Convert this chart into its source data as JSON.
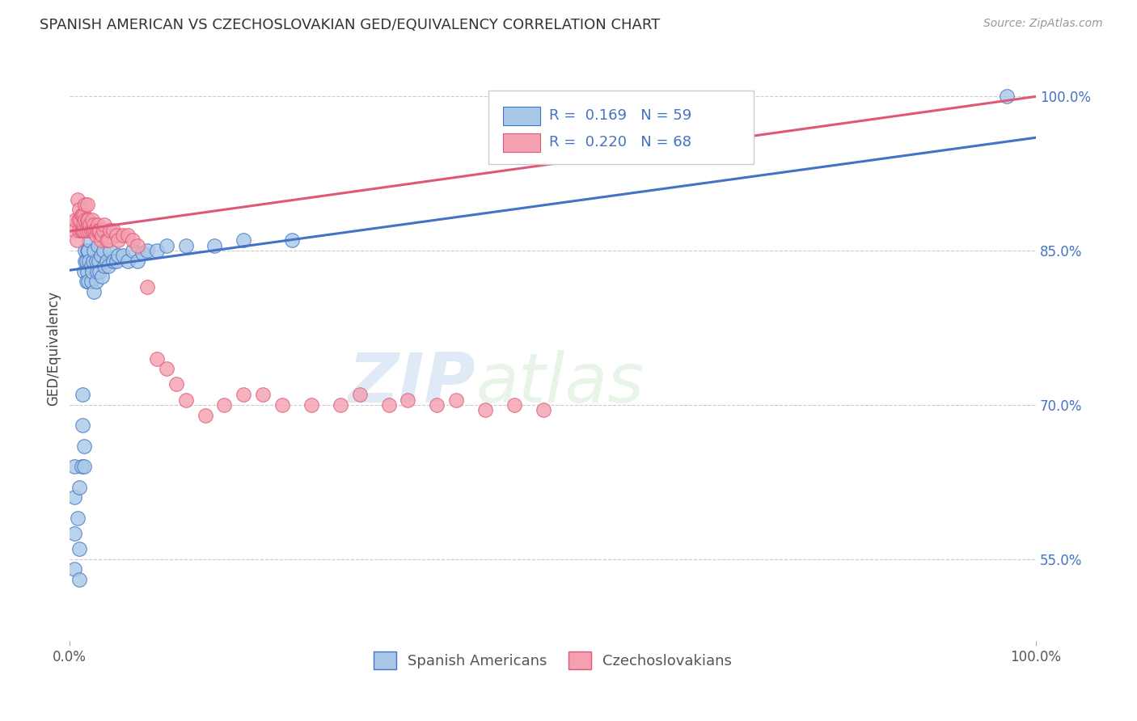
{
  "title": "SPANISH AMERICAN VS CZECHOSLOVAKIAN GED/EQUIVALENCY CORRELATION CHART",
  "source": "Source: ZipAtlas.com",
  "ylabel": "GED/Equivalency",
  "xlim": [
    0.0,
    1.0
  ],
  "ylim": [
    0.47,
    1.04
  ],
  "ytick_positions": [
    0.55,
    0.7,
    0.85,
    1.0
  ],
  "ytick_labels": [
    "55.0%",
    "70.0%",
    "85.0%",
    "100.0%"
  ],
  "blue_R": 0.169,
  "blue_N": 59,
  "pink_R": 0.22,
  "pink_N": 68,
  "blue_color": "#a8c8e8",
  "pink_color": "#f4a0b0",
  "blue_line_color": "#4472c4",
  "pink_line_color": "#e05878",
  "watermark_zip": "ZIP",
  "watermark_atlas": "atlas",
  "legend_label_blue": "Spanish Americans",
  "legend_label_pink": "Czechoslovakians",
  "blue_line_start_y": 0.831,
  "blue_line_end_y": 0.96,
  "pink_line_start_y": 0.869,
  "pink_line_end_y": 1.0,
  "blue_points_x": [
    0.005,
    0.005,
    0.005,
    0.005,
    0.008,
    0.01,
    0.01,
    0.01,
    0.012,
    0.013,
    0.013,
    0.015,
    0.015,
    0.015,
    0.016,
    0.016,
    0.017,
    0.017,
    0.018,
    0.018,
    0.019,
    0.019,
    0.02,
    0.02,
    0.022,
    0.022,
    0.023,
    0.024,
    0.025,
    0.025,
    0.027,
    0.027,
    0.028,
    0.029,
    0.03,
    0.031,
    0.032,
    0.033,
    0.035,
    0.036,
    0.038,
    0.04,
    0.042,
    0.045,
    0.048,
    0.05,
    0.055,
    0.06,
    0.065,
    0.07,
    0.075,
    0.08,
    0.09,
    0.1,
    0.12,
    0.15,
    0.18,
    0.23,
    0.97
  ],
  "blue_points_y": [
    0.54,
    0.575,
    0.61,
    0.64,
    0.59,
    0.53,
    0.56,
    0.62,
    0.64,
    0.68,
    0.71,
    0.64,
    0.66,
    0.83,
    0.84,
    0.85,
    0.82,
    0.84,
    0.83,
    0.85,
    0.82,
    0.85,
    0.84,
    0.86,
    0.82,
    0.835,
    0.83,
    0.84,
    0.81,
    0.85,
    0.82,
    0.84,
    0.83,
    0.855,
    0.84,
    0.83,
    0.845,
    0.825,
    0.85,
    0.835,
    0.84,
    0.835,
    0.85,
    0.84,
    0.84,
    0.845,
    0.845,
    0.84,
    0.85,
    0.84,
    0.848,
    0.85,
    0.85,
    0.855,
    0.855,
    0.855,
    0.86,
    0.86,
    1.0
  ],
  "pink_points_x": [
    0.005,
    0.006,
    0.007,
    0.008,
    0.009,
    0.01,
    0.01,
    0.011,
    0.012,
    0.012,
    0.013,
    0.013,
    0.014,
    0.015,
    0.015,
    0.016,
    0.016,
    0.017,
    0.018,
    0.018,
    0.019,
    0.019,
    0.02,
    0.021,
    0.022,
    0.023,
    0.024,
    0.025,
    0.026,
    0.027,
    0.028,
    0.029,
    0.03,
    0.031,
    0.032,
    0.033,
    0.035,
    0.036,
    0.038,
    0.04,
    0.042,
    0.045,
    0.048,
    0.05,
    0.055,
    0.06,
    0.065,
    0.07,
    0.08,
    0.09,
    0.1,
    0.11,
    0.12,
    0.14,
    0.16,
    0.18,
    0.2,
    0.22,
    0.25,
    0.28,
    0.3,
    0.33,
    0.35,
    0.38,
    0.4,
    0.43,
    0.46,
    0.49
  ],
  "pink_points_y": [
    0.87,
    0.88,
    0.86,
    0.9,
    0.88,
    0.87,
    0.89,
    0.88,
    0.87,
    0.885,
    0.87,
    0.885,
    0.875,
    0.87,
    0.885,
    0.88,
    0.895,
    0.87,
    0.88,
    0.895,
    0.875,
    0.88,
    0.87,
    0.875,
    0.87,
    0.88,
    0.87,
    0.875,
    0.87,
    0.865,
    0.87,
    0.875,
    0.87,
    0.87,
    0.86,
    0.865,
    0.87,
    0.875,
    0.86,
    0.86,
    0.87,
    0.87,
    0.865,
    0.86,
    0.865,
    0.865,
    0.86,
    0.855,
    0.815,
    0.745,
    0.735,
    0.72,
    0.705,
    0.69,
    0.7,
    0.71,
    0.71,
    0.7,
    0.7,
    0.7,
    0.71,
    0.7,
    0.705,
    0.7,
    0.705,
    0.695,
    0.7,
    0.695
  ]
}
